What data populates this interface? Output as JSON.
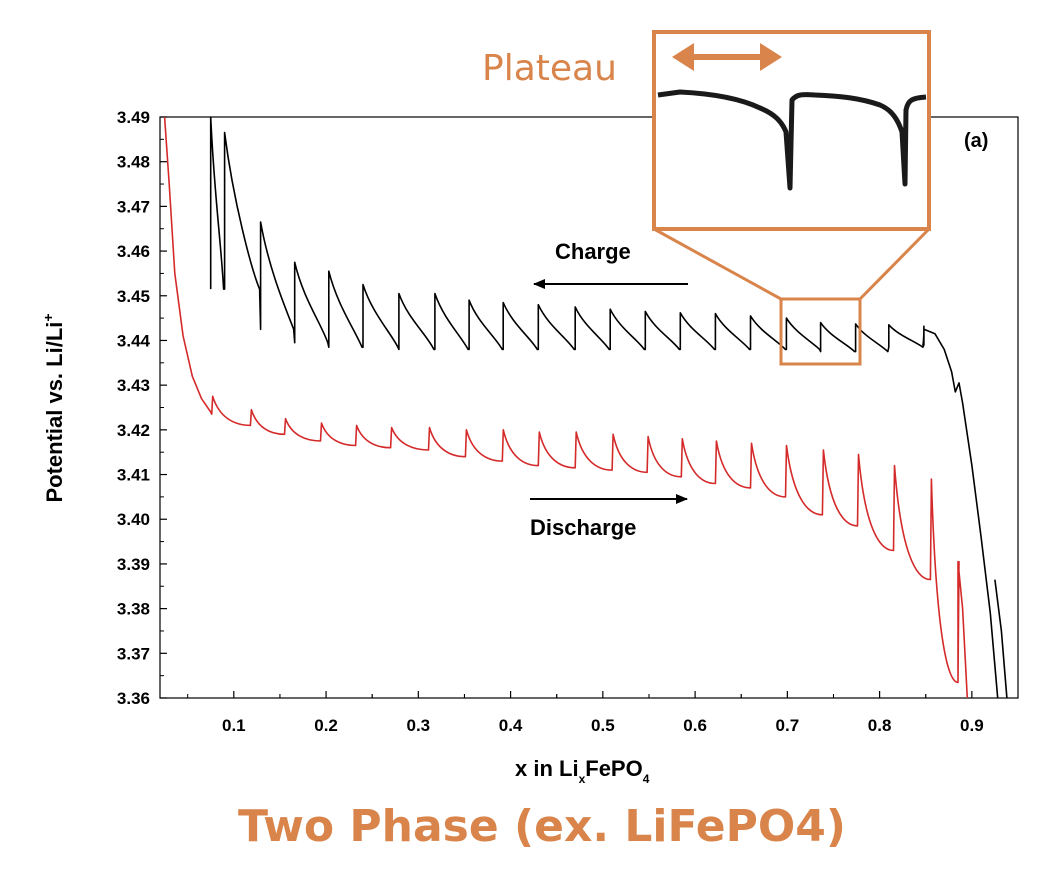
{
  "title": "Two Phase (ex. LiFePO4)",
  "colors": {
    "accent": "#d8844a",
    "charge": "#000000",
    "discharge": "#d42a2a"
  },
  "chart_data": {
    "type": "line",
    "panel_label": "(a)",
    "xlabel": {
      "main": "x in Li",
      "sub1": "x",
      "mid": "FePO",
      "sub2": "4"
    },
    "ylabel": {
      "main": "Potential vs. Li/Li",
      "sup": "+"
    },
    "xlim": [
      0.02,
      0.95
    ],
    "ylim": [
      3.36,
      3.49
    ],
    "xticks": [
      "0.1",
      "0.2",
      "0.3",
      "0.4",
      "0.5",
      "0.6",
      "0.7",
      "0.8",
      "0.9"
    ],
    "yticks": [
      "3.36",
      "3.37",
      "3.38",
      "3.39",
      "3.40",
      "3.41",
      "3.42",
      "3.43",
      "3.44",
      "3.45",
      "3.46",
      "3.47",
      "3.48",
      "3.49"
    ],
    "legend": "none",
    "grid": false,
    "annotations": [
      {
        "label": "Charge",
        "arrow": "left",
        "x_from": 0.6,
        "x_to": 0.43,
        "y": 3.4475
      },
      {
        "label": "Discharge",
        "arrow": "right",
        "x_from": 0.42,
        "x_to": 0.6,
        "y": 3.4035
      },
      {
        "label": "Plateau",
        "note": "zoomed inset of charge curve",
        "region_x": [
          0.7,
          0.78
        ],
        "region_y": [
          3.436,
          3.446
        ]
      }
    ],
    "series": [
      {
        "key": "charge",
        "pulses": [
          {
            "x": 0.075,
            "top": 3.49,
            "bottom": 3.4515
          },
          {
            "x": 0.09,
            "top": 3.4865,
            "bottom": 3.4515
          },
          {
            "x": 0.129,
            "top": 3.4665,
            "bottom": 3.4425
          },
          {
            "x": 0.166,
            "top": 3.4575,
            "bottom": 3.4395
          },
          {
            "x": 0.203,
            "top": 3.4555,
            "bottom": 3.4385
          },
          {
            "x": 0.24,
            "top": 3.4525,
            "bottom": 3.4385
          },
          {
            "x": 0.279,
            "top": 3.4505,
            "bottom": 3.438
          },
          {
            "x": 0.318,
            "top": 3.4505,
            "bottom": 3.438
          },
          {
            "x": 0.355,
            "top": 3.449,
            "bottom": 3.438
          },
          {
            "x": 0.392,
            "top": 3.4485,
            "bottom": 3.438
          },
          {
            "x": 0.43,
            "top": 3.448,
            "bottom": 3.438
          },
          {
            "x": 0.47,
            "top": 3.4475,
            "bottom": 3.438
          },
          {
            "x": 0.508,
            "top": 3.447,
            "bottom": 3.438
          },
          {
            "x": 0.546,
            "top": 3.4465,
            "bottom": 3.438
          },
          {
            "x": 0.584,
            "top": 3.4462,
            "bottom": 3.438
          },
          {
            "x": 0.622,
            "top": 3.446,
            "bottom": 3.438
          },
          {
            "x": 0.66,
            "top": 3.4455,
            "bottom": 3.438
          },
          {
            "x": 0.699,
            "top": 3.445,
            "bottom": 3.438
          },
          {
            "x": 0.736,
            "top": 3.444,
            "bottom": 3.4375
          },
          {
            "x": 0.774,
            "top": 3.4437,
            "bottom": 3.4375
          },
          {
            "x": 0.81,
            "top": 3.4435,
            "bottom": 3.4385
          },
          {
            "x": 0.848,
            "top": 3.4432,
            "bottom": 3.439
          }
        ],
        "tail": [
          [
            0.848,
            3.4425
          ],
          [
            0.86,
            3.4415
          ],
          [
            0.87,
            3.438
          ],
          [
            0.878,
            3.433
          ],
          [
            0.882,
            3.4285
          ],
          [
            0.886,
            3.4305
          ],
          [
            0.89,
            3.426
          ],
          [
            0.9,
            3.412
          ],
          [
            0.91,
            3.396
          ],
          [
            0.92,
            3.379
          ],
          [
            0.928,
            3.36
          ]
        ],
        "tail2": [
          [
            0.925,
            3.3865
          ],
          [
            0.932,
            3.375
          ],
          [
            0.938,
            3.36
          ]
        ]
      },
      {
        "key": "discharge",
        "head": [
          [
            0.025,
            3.49
          ],
          [
            0.03,
            3.475
          ],
          [
            0.036,
            3.455
          ],
          [
            0.045,
            3.441
          ],
          [
            0.055,
            3.432
          ],
          [
            0.065,
            3.427
          ],
          [
            0.075,
            3.424
          ]
        ],
        "pulses": [
          {
            "x": 0.076,
            "low": 3.4235,
            "high": 3.4275
          },
          {
            "x": 0.118,
            "low": 3.421,
            "high": 3.4245
          },
          {
            "x": 0.155,
            "low": 3.419,
            "high": 3.4225
          },
          {
            "x": 0.194,
            "low": 3.4175,
            "high": 3.4215
          },
          {
            "x": 0.232,
            "low": 3.4165,
            "high": 3.421
          },
          {
            "x": 0.27,
            "low": 3.416,
            "high": 3.4205
          },
          {
            "x": 0.311,
            "low": 3.4155,
            "high": 3.4205
          },
          {
            "x": 0.351,
            "low": 3.414,
            "high": 3.42
          },
          {
            "x": 0.391,
            "low": 3.413,
            "high": 3.42
          },
          {
            "x": 0.43,
            "low": 3.412,
            "high": 3.4195
          },
          {
            "x": 0.47,
            "low": 3.4115,
            "high": 3.4195
          },
          {
            "x": 0.51,
            "low": 3.411,
            "high": 3.419
          },
          {
            "x": 0.548,
            "low": 3.4105,
            "high": 3.4185
          },
          {
            "x": 0.585,
            "low": 3.4095,
            "high": 3.418
          },
          {
            "x": 0.622,
            "low": 3.408,
            "high": 3.4175
          },
          {
            "x": 0.66,
            "low": 3.407,
            "high": 3.417
          },
          {
            "x": 0.698,
            "low": 3.405,
            "high": 3.4165
          },
          {
            "x": 0.738,
            "low": 3.401,
            "high": 3.4155
          },
          {
            "x": 0.776,
            "low": 3.3985,
            "high": 3.4145
          },
          {
            "x": 0.815,
            "low": 3.393,
            "high": 3.412
          },
          {
            "x": 0.855,
            "low": 3.3865,
            "high": 3.409
          },
          {
            "x": 0.885,
            "low": 3.3635,
            "high": 3.3905
          }
        ],
        "tail": [
          [
            0.885,
            3.3905
          ],
          [
            0.89,
            3.38
          ],
          [
            0.895,
            3.36
          ]
        ]
      }
    ]
  }
}
